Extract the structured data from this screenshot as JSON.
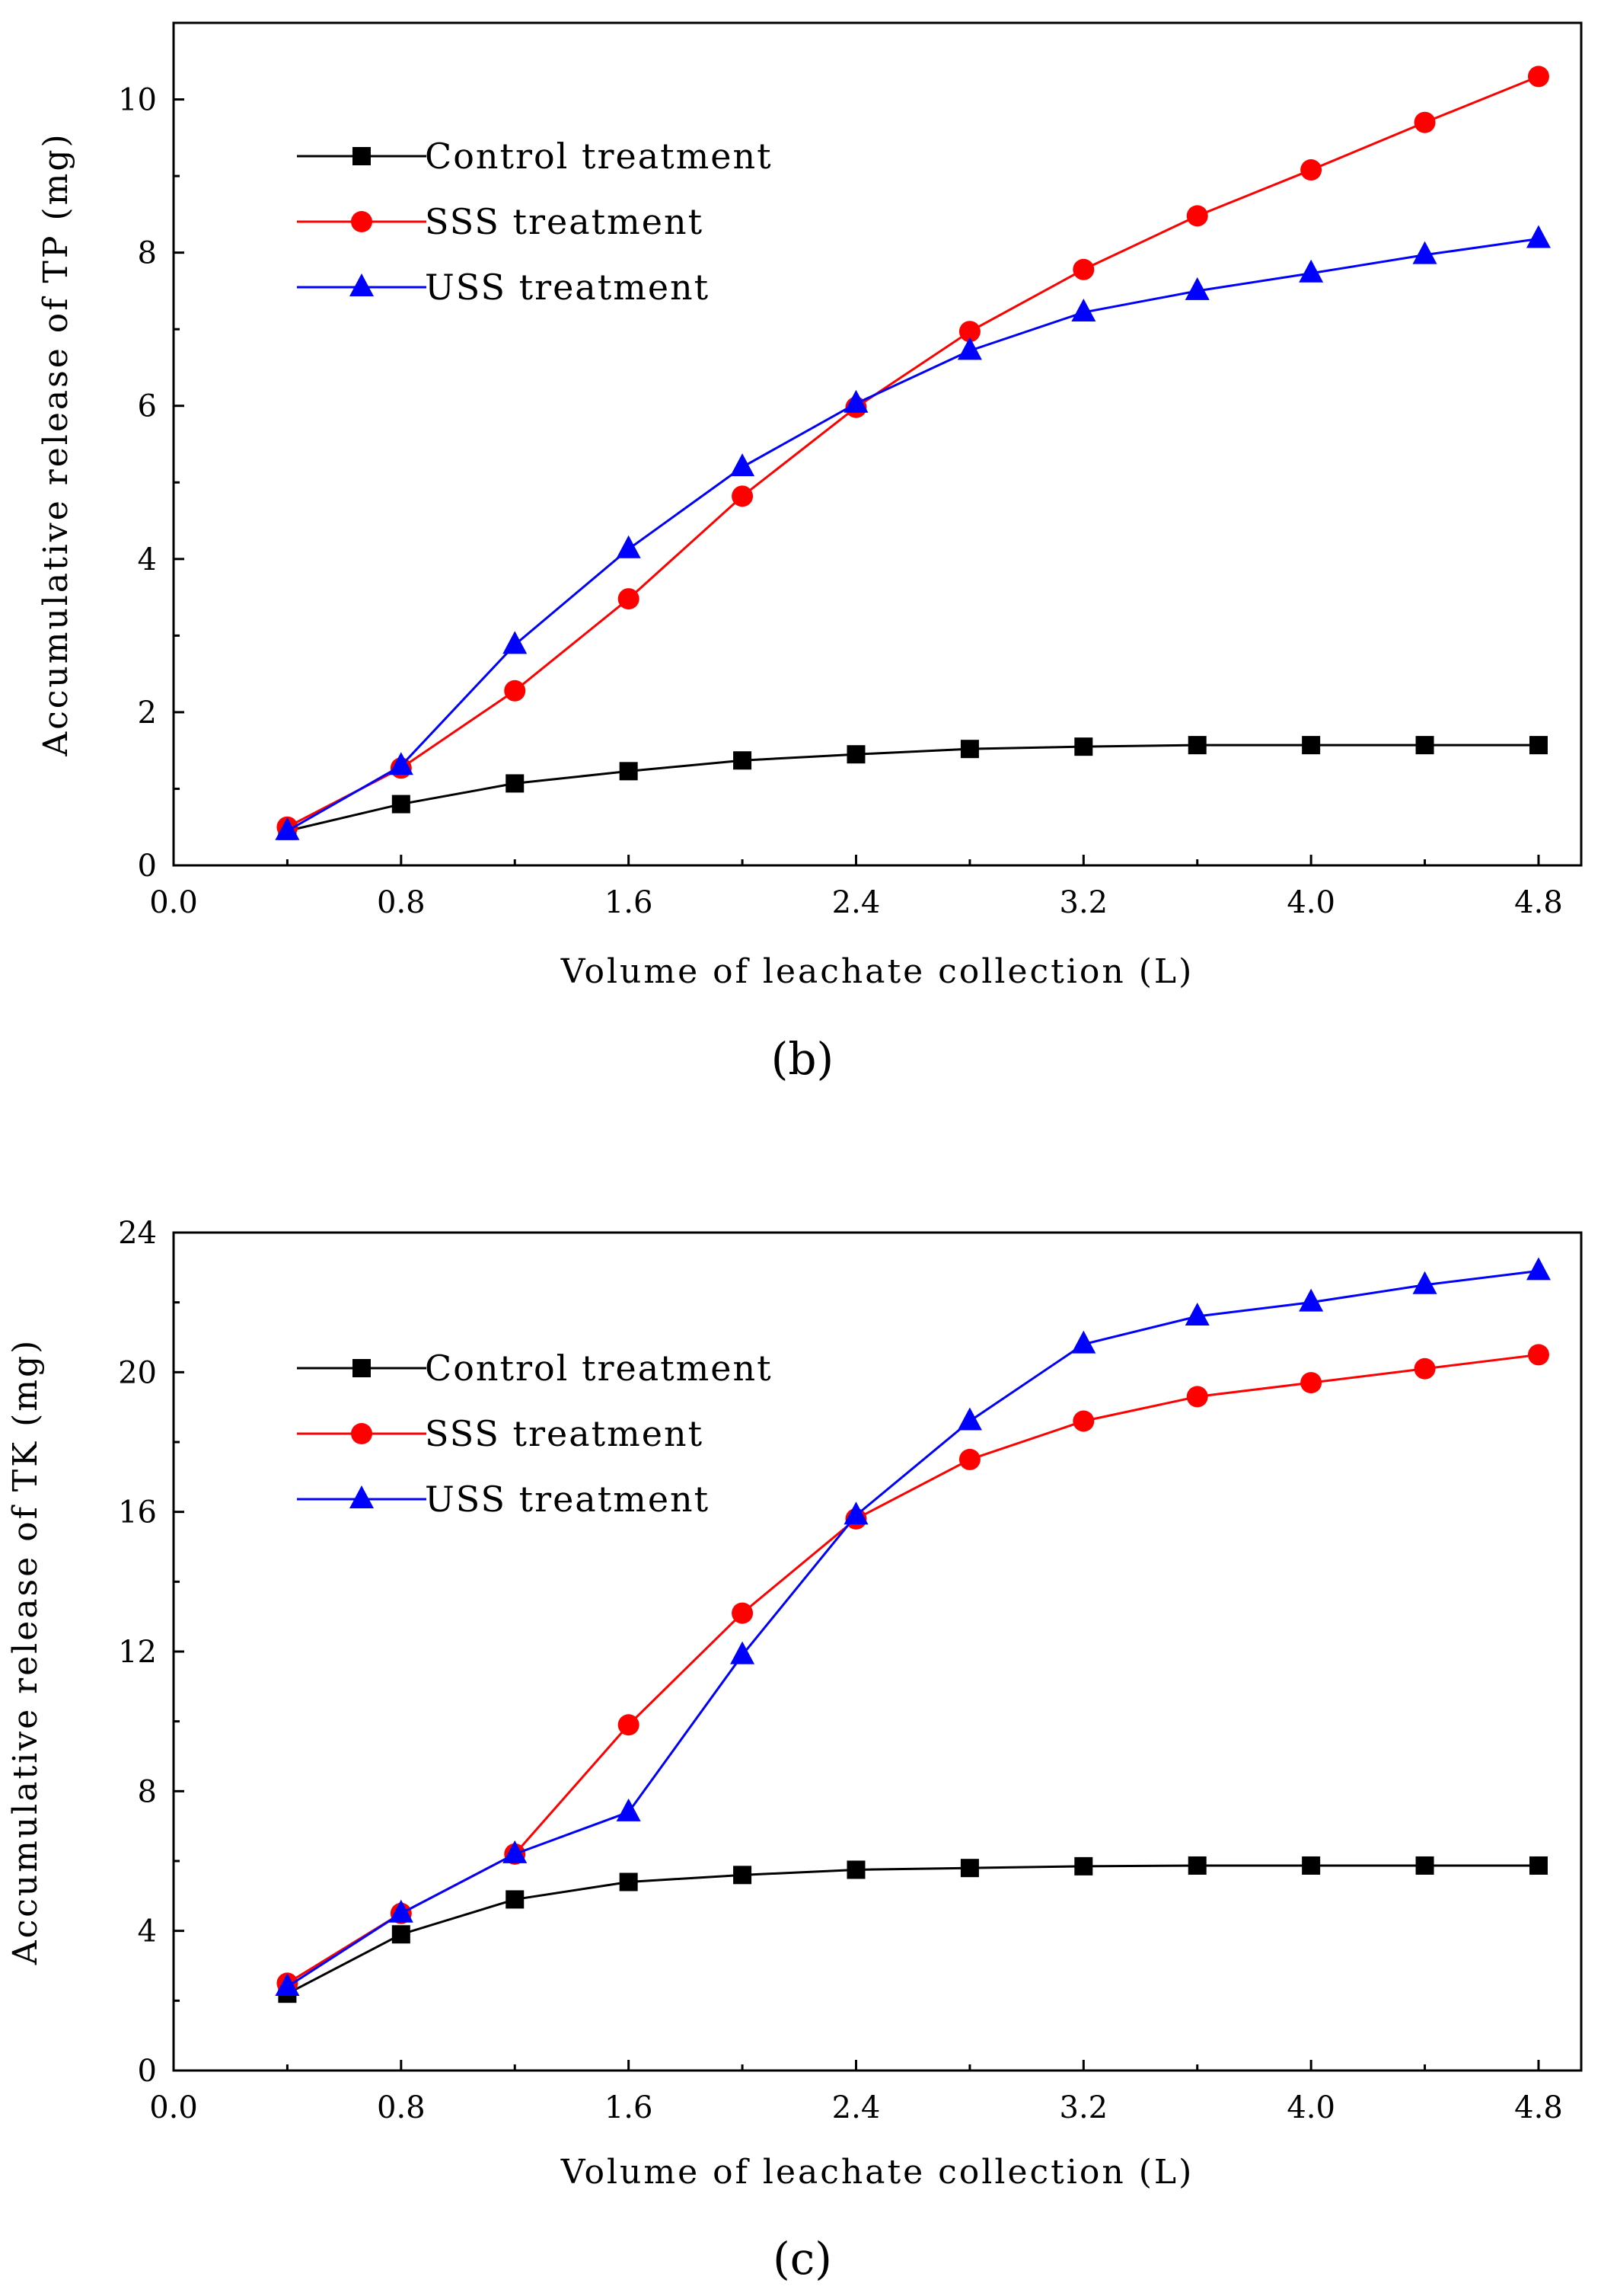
{
  "chart_data": [
    {
      "type": "line",
      "panel_label": "(b)",
      "xlabel": "Volume of leachate  collection (L)",
      "ylabel": "Accumulative release of TP (mg)",
      "xlim": [
        0,
        4.95
      ],
      "ylim": [
        0,
        11
      ],
      "xticks": [
        0.0,
        0.8,
        1.6,
        2.4,
        3.2,
        4.0,
        4.8
      ],
      "xtick_labels": [
        "0.0",
        "0.8",
        "1.6",
        "2.4",
        "3.2",
        "4.0",
        "4.8"
      ],
      "yticks": [
        0,
        2,
        4,
        6,
        8,
        10
      ],
      "ytick_labels": [
        "0",
        "2",
        "4",
        "6",
        "8",
        "10"
      ],
      "legend_position": "top-left",
      "x": [
        0.4,
        0.8,
        1.2,
        1.6,
        2.0,
        2.4,
        2.8,
        3.2,
        3.6,
        4.0,
        4.4,
        4.8
      ],
      "series": [
        {
          "name": "Control treatment",
          "color": "#000000",
          "marker": "square",
          "values": [
            0.45,
            0.8,
            1.07,
            1.23,
            1.37,
            1.45,
            1.52,
            1.55,
            1.57,
            1.57,
            1.57,
            1.57
          ]
        },
        {
          "name": "SSS treatment",
          "color": "#ff0000",
          "marker": "circle",
          "values": [
            0.5,
            1.27,
            2.28,
            3.48,
            4.82,
            5.98,
            6.97,
            7.78,
            8.48,
            9.08,
            9.7,
            10.3
          ]
        },
        {
          "name": "USS treatment",
          "color": "#0000ff",
          "marker": "triangle",
          "values": [
            0.45,
            1.3,
            2.88,
            4.13,
            5.2,
            6.03,
            6.72,
            7.22,
            7.5,
            7.73,
            7.97,
            8.18
          ]
        }
      ]
    },
    {
      "type": "line",
      "panel_label": "(c)",
      "xlabel": "Volume of leachate collection (L)",
      "ylabel": "Accumulative release of TK (mg)",
      "xlim": [
        0,
        4.95
      ],
      "ylim": [
        0,
        24
      ],
      "xticks": [
        0.0,
        0.8,
        1.6,
        2.4,
        3.2,
        4.0,
        4.8
      ],
      "xtick_labels": [
        "0.0",
        "0.8",
        "1.6",
        "2.4",
        "3.2",
        "4.0",
        "4.8"
      ],
      "yticks": [
        0,
        4,
        8,
        12,
        16,
        20,
        24
      ],
      "ytick_labels": [
        "0",
        "4",
        "8",
        "12",
        "16",
        "20",
        "24"
      ],
      "legend_position": "top-left",
      "x": [
        0.4,
        0.8,
        1.2,
        1.6,
        2.0,
        2.4,
        2.8,
        3.2,
        3.6,
        4.0,
        4.4,
        4.8
      ],
      "series": [
        {
          "name": "Control treatment",
          "color": "#000000",
          "marker": "square",
          "values": [
            2.2,
            3.9,
            4.9,
            5.4,
            5.6,
            5.75,
            5.8,
            5.85,
            5.87,
            5.87,
            5.87,
            5.87
          ]
        },
        {
          "name": "SSS treatment",
          "color": "#ff0000",
          "marker": "circle",
          "values": [
            2.5,
            4.5,
            6.2,
            9.9,
            13.1,
            15.8,
            17.5,
            18.6,
            19.3,
            19.7,
            20.1,
            20.5
          ]
        },
        {
          "name": "USS treatment",
          "color": "#0000ff",
          "marker": "triangle",
          "values": [
            2.4,
            4.5,
            6.2,
            7.4,
            11.9,
            15.9,
            18.6,
            20.8,
            21.6,
            22.0,
            22.5,
            22.9
          ]
        }
      ]
    }
  ]
}
